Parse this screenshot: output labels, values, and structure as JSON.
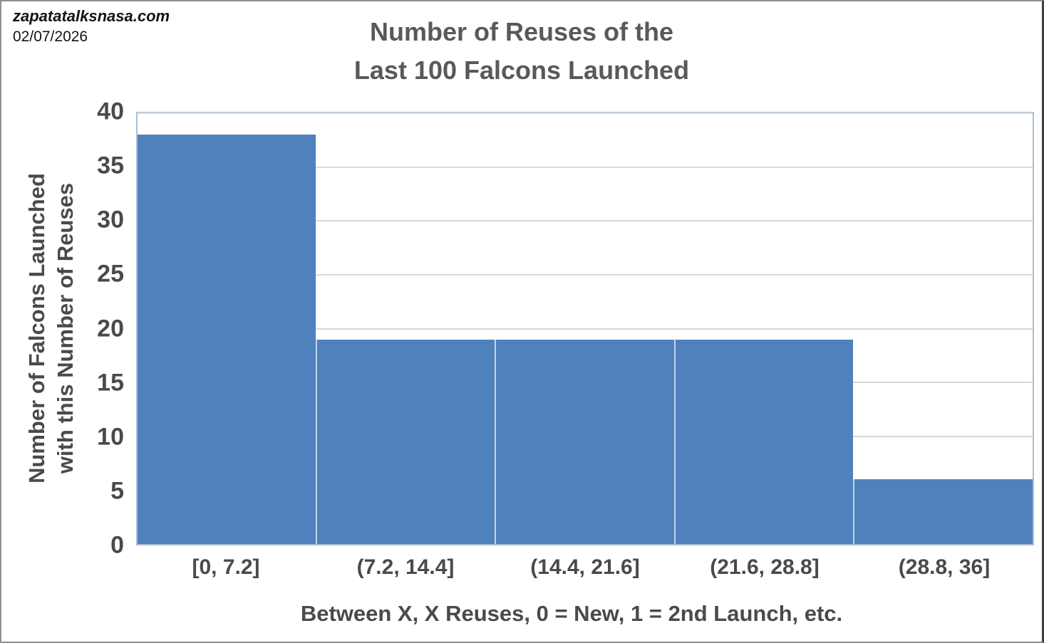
{
  "watermark": {
    "site": "zapatatalksnasa.com",
    "date": "02/07/2026"
  },
  "chart_data": {
    "type": "bar",
    "subtype": "histogram",
    "title_lines": [
      "Number of Reuses of the",
      "Last 100 Falcons Launched"
    ],
    "categories": [
      "[0, 7.2]",
      "(7.2, 14.4]",
      "(14.4, 21.6]",
      "(21.6, 28.8]",
      "(28.8, 36]"
    ],
    "values": [
      38,
      19,
      19,
      19,
      6
    ],
    "xlabel": "Between X, X Reuses, 0 = New, 1 = 2nd Launch, etc.",
    "ylabel_lines": [
      "Number of Falcons Launched",
      "with this Number of Reuses"
    ],
    "ylim": [
      0,
      40
    ],
    "yticks": [
      0,
      5,
      10,
      15,
      20,
      25,
      30,
      35,
      40
    ],
    "grid": true,
    "legend": "none",
    "gap_width_pct": 0,
    "colors": {
      "bar_fill": "#4F81BD",
      "bar_divider": "#c6d5e8",
      "plot_border": "#a9bfd8",
      "gridline": "#d9d9d9",
      "axis_text": "#4a4a4a",
      "title_text": "#595959"
    }
  }
}
